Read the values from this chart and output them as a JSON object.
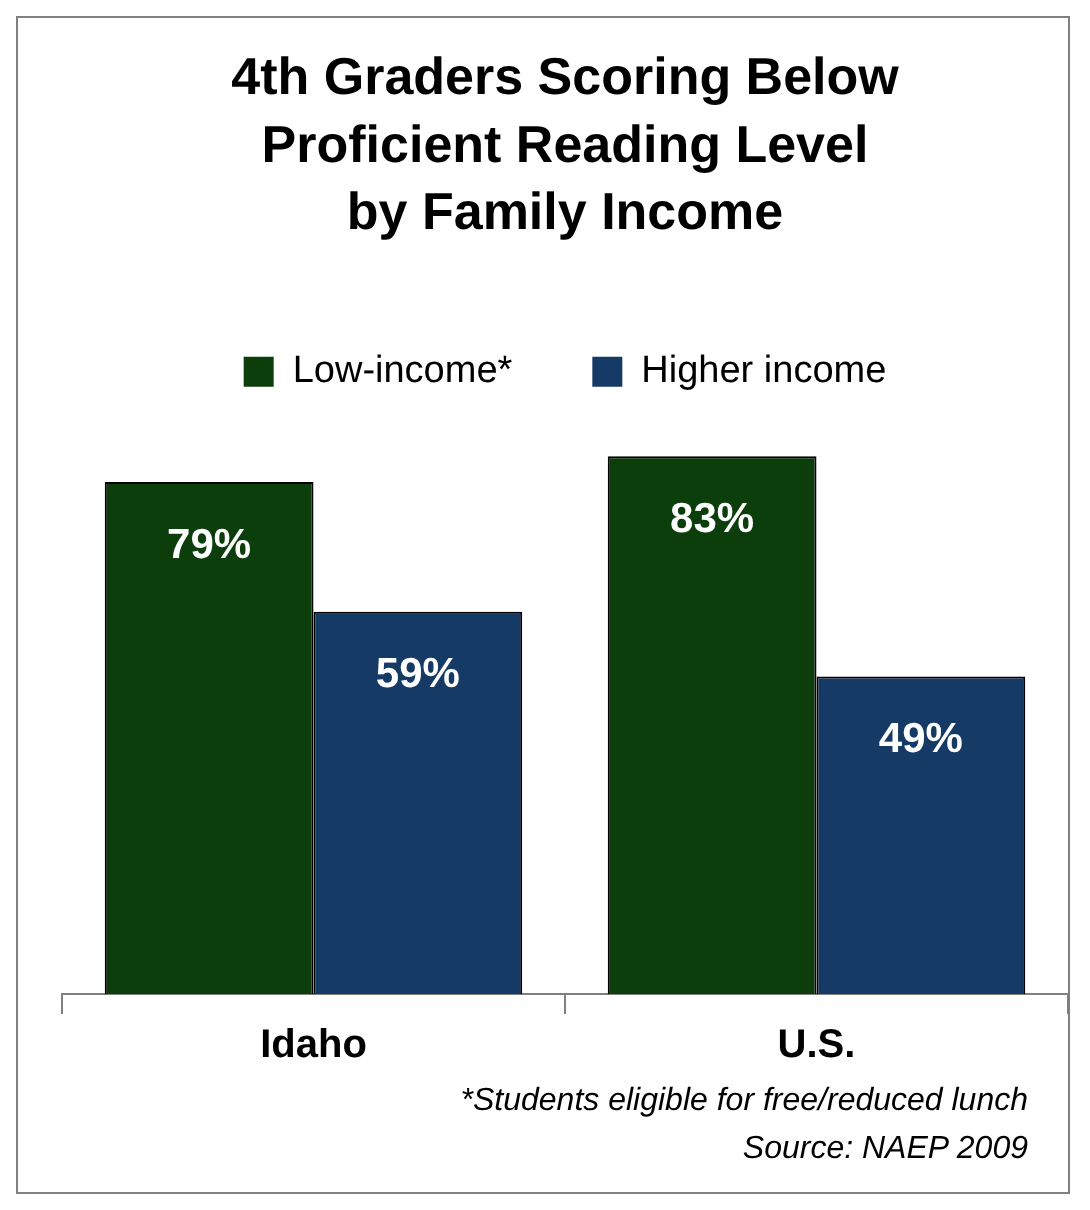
{
  "chart_data": {
    "type": "bar",
    "title": [
      "4th Graders Scoring Below",
      "Proficient Reading Level",
      "by Family Income"
    ],
    "categories": [
      "Idaho",
      "U.S."
    ],
    "series": [
      {
        "name": "Low-income*",
        "color": "#0c3e0c",
        "values": [
          79,
          83
        ],
        "value_labels": [
          "79%",
          "83%"
        ]
      },
      {
        "name": "Higher income",
        "color": "#163a66",
        "values": [
          59,
          49
        ],
        "value_labels": [
          "59%",
          "49%"
        ]
      }
    ],
    "legend": "top",
    "grid": false,
    "annotations": [
      "*Students eligible for free/reduced lunch",
      "Source: NAEP 2009"
    ]
  }
}
